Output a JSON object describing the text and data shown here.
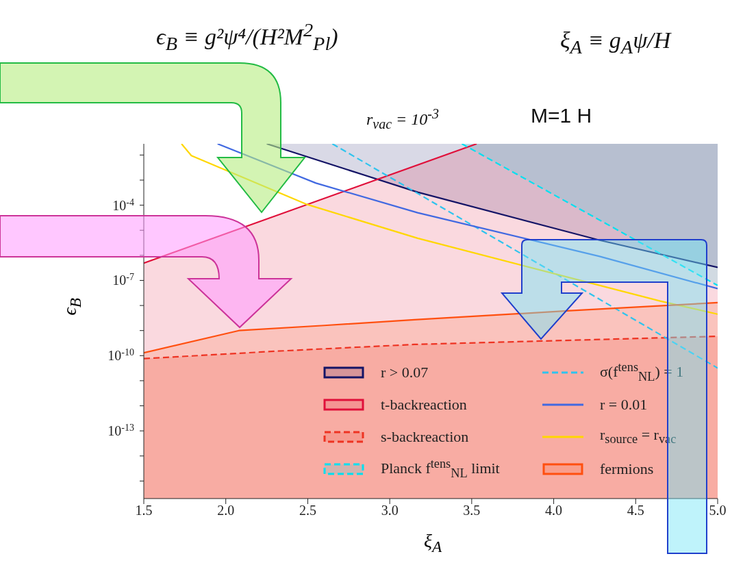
{
  "chart_data": {
    "type": "line",
    "xlabel": "ξ$_{A}$",
    "ylabel": "ϵ$_{B}$",
    "annotations": [
      "ϵ$_{B}$ ≡ g²ψ⁴/(H²M$^{2}$$_{Pl}$)",
      "ξ$_{A}$ ≡ g$_{A}$ψ/H",
      "r$_{vac}$ = 10$^{-3}$",
      "M=1 H"
    ],
    "log": "y",
    "grid": false,
    "legend": "bottom",
    "marker": "none",
    "xlim": [
      1.5,
      5.0
    ],
    "xticks": [
      1.5,
      {
        "value": 2,
        "label": "2.0"
      },
      2.5,
      {
        "value": 3,
        "label": "3.0"
      },
      3.5,
      {
        "value": 4,
        "label": "4.0"
      },
      4.5,
      {
        "value": 5,
        "label": "5.0"
      }
    ],
    "ylim": [
      2e-16,
      0.028
    ],
    "yticks": [
      {
        "value": 1e-15,
        "label": null
      },
      {
        "value": 1e-14,
        "label": null
      },
      {
        "value": 1e-13,
        "label": "10$^{-13}$"
      },
      {
        "value": 1e-12,
        "label": null
      },
      {
        "value": 1e-11,
        "label": null
      },
      {
        "value": 1e-10,
        "label": "10$^{-10}$"
      },
      {
        "value": 1e-09,
        "label": null
      },
      {
        "value": 1e-08,
        "label": null
      },
      {
        "value": 1e-07,
        "label": "10$^{-7}$"
      },
      {
        "value": 1e-06,
        "label": null
      },
      {
        "value": 1e-05,
        "label": null
      },
      {
        "value": 0.0001,
        "label": "10$^{-4}$"
      },
      {
        "value": 0.001,
        "label": null
      },
      {
        "value": 0.01,
        "label": null
      }
    ],
    "series": [
      {
        "name": "r > 0.07",
        "color": "#141466",
        "line_style": "solid",
        "x": [
          2.25,
          3.17,
          4.28,
          5.0
        ],
        "values": [
          0.028,
          0.00033,
          4e-06,
          3.3e-07
        ],
        "lower": [
          0.028,
          0.00033,
          4e-06,
          3.3e-07
        ],
        "upper": [
          0.028,
          0.028,
          0.028,
          0.028
        ]
      },
      {
        "name": "t-backreaction",
        "color": "#e0103a",
        "line_style": "solid",
        "x": [
          1.5,
          3.53,
          5.0
        ],
        "values": [
          4.9e-07,
          0.028,
          null
        ],
        "lower": [
          2e-16,
          2e-16,
          2e-16
        ],
        "upper": [
          4.9e-07,
          0.028,
          0.028
        ]
      },
      {
        "name": "s-backreaction",
        "color": "#ee3322",
        "line_style": "dashed",
        "x": [
          1.5,
          2.3,
          3.15,
          5.0
        ],
        "values": [
          7.6e-11,
          1.5e-10,
          2.8e-10,
          5.9e-10
        ],
        "lower": [
          2e-16,
          2e-16,
          2e-16,
          2e-16
        ],
        "upper": [
          7.6e-11,
          1.5e-10,
          2.8e-10,
          5.9e-10
        ]
      },
      {
        "name": "Planck f$^{tens}$$_{NL}$ limit",
        "color": "#00e0f0",
        "line_style": "dashed",
        "x": [
          3.44,
          5.0
        ],
        "values": [
          0.028,
          6.3e-08
        ],
        "lower": [
          0.028,
          6.3e-08
        ],
        "upper": [
          0.028,
          0.028
        ]
      },
      {
        "name": "σ(f$^{tens}$$_{NL}$) = 1",
        "color": "#2ec4ee",
        "line_style": "dashed",
        "x": [
          2.65,
          3.36,
          5.0
        ],
        "values": [
          0.028,
          5.6e-05,
          3.2e-11
        ]
      },
      {
        "name": "r = 0.01",
        "color": "#4169e1",
        "line_style": "solid",
        "x": [
          1.95,
          2.55,
          3.17,
          4.28,
          5.0
        ],
        "values": [
          0.028,
          0.00076,
          5e-05,
          9.1e-07,
          4.7e-08
        ]
      },
      {
        "name": "r$_{source}$ = r$_{vac}$",
        "color": "#ffd700",
        "line_style": "solid",
        "x": [
          1.73,
          1.79,
          2.49,
          3.17,
          4.65,
          5.0
        ],
        "values": [
          0.028,
          0.0095,
          0.00011,
          4.8e-06,
          1.5e-08,
          4.5e-09
        ]
      },
      {
        "name": "fermions",
        "color": "#ff4f0f",
        "line_style": "solid",
        "x": [
          1.5,
          2.08,
          2.6,
          3.15,
          4.1,
          5.0
        ],
        "values": [
          1.3e-10,
          1e-09,
          1.6e-09,
          2.7e-09,
          6.2e-09,
          1.3e-08
        ],
        "lower": [
          2e-16,
          2e-16,
          2e-16,
          2e-16,
          2e-16,
          2e-16
        ],
        "upper": [
          1.3e-10,
          1e-09,
          1.6e-09,
          2.7e-09,
          6.2e-09,
          1.3e-08
        ]
      }
    ]
  }
}
